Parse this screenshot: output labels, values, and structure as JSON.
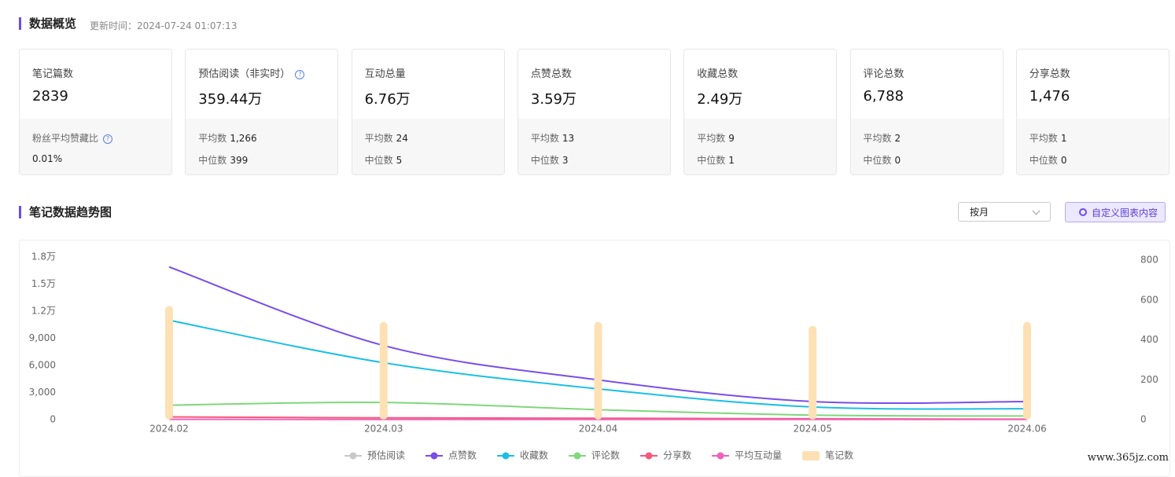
{
  "header": {
    "title": "数据概览",
    "updated": "更新时间：2024-07-24 01:07:13"
  },
  "cards": [
    {
      "label": "笔记篇数",
      "value": "2839",
      "sub": [
        {
          "label": "粉丝平均赞藏比",
          "help": true
        },
        {
          "label": "0.01%"
        }
      ]
    },
    {
      "label": "预估阅读（非实时）",
      "help": true,
      "value": "359.44万",
      "sub": [
        {
          "label": "平均数",
          "value": "1,266"
        },
        {
          "label": "中位数",
          "value": "399"
        }
      ]
    },
    {
      "label": "互动总量",
      "value": "6.76万",
      "sub": [
        {
          "label": "平均数",
          "value": "24"
        },
        {
          "label": "中位数",
          "value": "5"
        }
      ]
    },
    {
      "label": "点赞总数",
      "value": "3.59万",
      "sub": [
        {
          "label": "平均数",
          "value": "13"
        },
        {
          "label": "中位数",
          "value": "3"
        }
      ]
    },
    {
      "label": "收藏总数",
      "value": "2.49万",
      "sub": [
        {
          "label": "平均数",
          "value": "9"
        },
        {
          "label": "中位数",
          "value": "1"
        }
      ]
    },
    {
      "label": "评论总数",
      "value": "6,788",
      "sub": [
        {
          "label": "平均数",
          "value": "2"
        },
        {
          "label": "中位数",
          "value": "0"
        }
      ]
    },
    {
      "label": "分享总数",
      "value": "1,476",
      "sub": [
        {
          "label": "平均数",
          "value": "1"
        },
        {
          "label": "中位数",
          "value": "0"
        }
      ]
    }
  ],
  "trend": {
    "title": "笔记数据趋势图",
    "select": "按月",
    "button": "自定义图表内容"
  },
  "watermark": "www.365jz.com",
  "chart_data": {
    "type": "line",
    "categories": [
      "2024.02",
      "2024.03",
      "2024.04",
      "2024.05",
      "2024.06"
    ],
    "ylim": [
      0,
      18000
    ],
    "yticks": [
      0,
      {
        "value": 3000,
        "label": "3,000"
      },
      {
        "value": 6000,
        "label": "6,000"
      },
      {
        "value": 9000,
        "label": "9,000"
      },
      {
        "value": 12000,
        "label": "1.2万"
      },
      {
        "value": 15000,
        "label": "1.5万"
      },
      {
        "value": 18000,
        "label": "1.8万"
      }
    ],
    "y2lim": [
      0,
      800
    ],
    "y2ticks": [
      0,
      200,
      400,
      600,
      800
    ],
    "grid": false,
    "series": [
      {
        "name": "预估阅读",
        "color": "#c8c8c8",
        "visible": false,
        "values": [
          null,
          null,
          null,
          null,
          null
        ]
      },
      {
        "name": "点赞数",
        "color": "#7a4de8",
        "values": [
          16900,
          8200,
          4400,
          2000,
          2000
        ]
      },
      {
        "name": "收藏数",
        "color": "#19bfe6",
        "values": [
          11000,
          6300,
          3400,
          1400,
          1200
        ]
      },
      {
        "name": "评论数",
        "color": "#7ed87a",
        "values": [
          1600,
          1900,
          1100,
          500,
          400
        ]
      },
      {
        "name": "分享数",
        "color": "#f5587b",
        "values": [
          300,
          200,
          150,
          100,
          50
        ]
      },
      {
        "name": "平均互动量",
        "color": "#f062b8",
        "values": [
          30,
          25,
          24,
          20,
          20
        ]
      },
      {
        "name": "笔记数",
        "type": "bar",
        "axis": "y2",
        "color": "#fde1b5",
        "values": [
          570,
          490,
          490,
          470,
          490
        ]
      }
    ]
  }
}
